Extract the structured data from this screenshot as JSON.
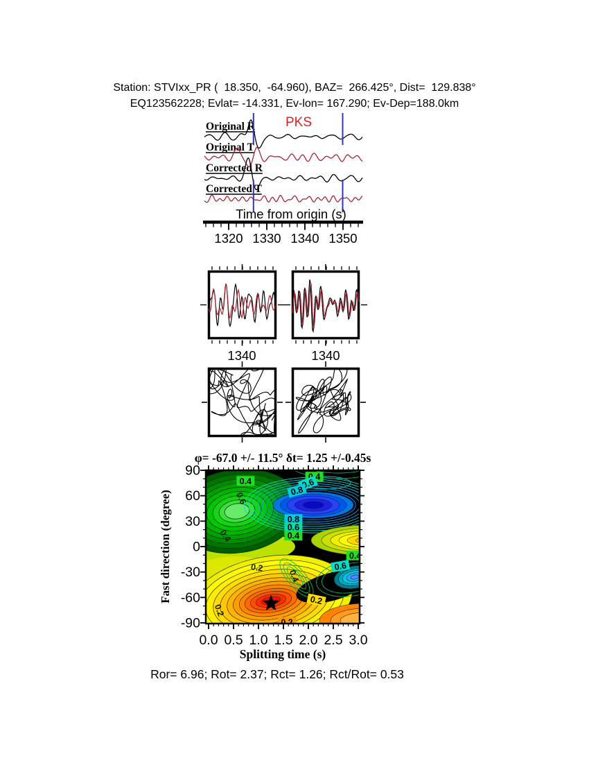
{
  "palette": {
    "trace_black": "#000000",
    "trace_red": "#b22333",
    "phase_red": "#dd2222",
    "window_blue": "#3333bb",
    "frame_black": "#000000",
    "star": "#000000"
  },
  "header": {
    "line1": "Station: STVIxx_PR (  18.350,  -64.960), BAZ=  266.425°, Dist=  129.838°",
    "line2": "EQ123562228; Evlat= -14.331, Ev-lon= 167.290; Ev-Dep=188.0km"
  },
  "results_line": "Ror= 6.96; Rot= 2.37; Rct= 1.26; Rct/Rot= 0.53",
  "chart_data": [
    {
      "type": "line",
      "panel": "seismograms",
      "series": [
        {
          "name": "Original R",
          "color": "#000000"
        },
        {
          "name": "Original T",
          "color": "#b22333"
        },
        {
          "name": "Corrected R",
          "color": "#000000"
        },
        {
          "name": "Corrected T",
          "color": "#b22333"
        }
      ],
      "phase_label": "PKS",
      "xlabel": "Time from origin (s)",
      "xticks": [
        1320,
        1330,
        1340,
        1350
      ],
      "x_range_s": [
        1313.6,
        1355.4
      ],
      "analysis_window_s": [
        1326.5,
        1349.9
      ]
    },
    {
      "type": "line",
      "panel": "waveform-comparison",
      "panels": [
        {
          "x_tick": "1340"
        },
        {
          "x_tick": "1340"
        }
      ]
    },
    {
      "type": "line",
      "panel": "particle-motion",
      "panels": [
        {},
        {}
      ]
    },
    {
      "type": "heatmap",
      "panel": "splitting-grid-search",
      "title": "φ= -67.0 +/- 11.5° δt= 1.25 +/-0.45s",
      "xlabel": "Splitting time (s)",
      "ylabel": "Fast direction (degree)",
      "xlim": [
        0.0,
        3.0
      ],
      "ylim": [
        -90,
        90
      ],
      "xticks": [
        "0.0",
        "0.5",
        "1.0",
        "1.5",
        "2.0",
        "2.5",
        "3.0"
      ],
      "yticks": [
        90,
        60,
        30,
        0,
        -30,
        -60,
        -90
      ],
      "best_solution": {
        "splitting_time_s": 1.25,
        "fast_direction_deg": -67.0,
        "phi_err_deg": 11.5,
        "dt_err_s": 0.45,
        "marker": "star"
      },
      "energy_minimum": {
        "splitting_time_s": 2.1,
        "fast_direction_deg": 49
      },
      "contour_labels": [
        {
          "v": "0.4",
          "s": 0.74,
          "d": 77.5,
          "bg": "#22dd22",
          "rot": 0
        },
        {
          "v": "0.6",
          "s": 0.66,
          "d": 57.0,
          "bg": "",
          "rot": 65
        },
        {
          "v": "0.4",
          "s": 2.12,
          "d": 82.5,
          "bg": "#22dd22",
          "rot": 0
        },
        {
          "v": "0.6",
          "s": 1.99,
          "d": 74.5,
          "bg": "#00ddcc",
          "rot": -20
        },
        {
          "v": "0.8",
          "s": 1.77,
          "d": 66.0,
          "bg": "#00ccdd",
          "rot": -15
        },
        {
          "v": "0.8",
          "s": 1.7,
          "d": 32.5,
          "bg": "#00ccdd",
          "rot": 0
        },
        {
          "v": "0.6",
          "s": 1.7,
          "d": 23.0,
          "bg": "#00ddaa",
          "rot": 0
        },
        {
          "v": "0.4",
          "s": 1.7,
          "d": 13.0,
          "bg": "#22dd22",
          "rot": 0
        },
        {
          "v": "0.4",
          "s": 0.34,
          "d": 13.0,
          "bg": "",
          "rot": 55
        },
        {
          "v": "0.2",
          "s": 0.97,
          "d": -24.5,
          "bg": "",
          "rot": 8
        },
        {
          "v": "0.4",
          "s": 1.72,
          "d": -34.5,
          "bg": "",
          "rot": 70
        },
        {
          "v": "0.6",
          "s": 2.64,
          "d": -23.0,
          "bg": "#00ddcc",
          "rot": -10
        },
        {
          "v": "0.4",
          "s": 2.94,
          "d": -10.5,
          "bg": "#22dd22",
          "rot": 0
        },
        {
          "v": "0.2",
          "s": 2.16,
          "d": -63.0,
          "bg": "#ffdd00",
          "rot": 12
        },
        {
          "v": "0.2",
          "s": 0.22,
          "d": -75.0,
          "bg": "",
          "rot": 70
        },
        {
          "v": "0.2",
          "s": 1.57,
          "d": -89.0,
          "bg": "#ff9900",
          "rot": 0
        }
      ]
    }
  ]
}
